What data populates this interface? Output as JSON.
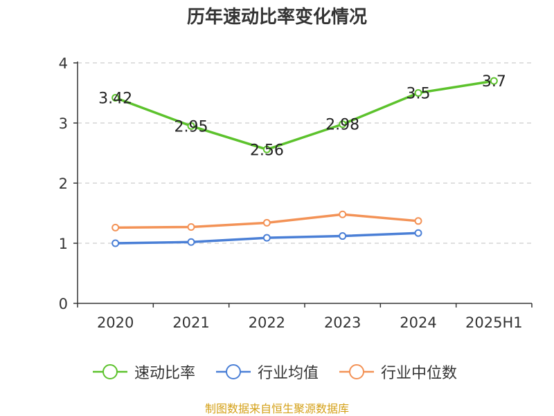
{
  "chart_data": {
    "type": "line",
    "title": "历年速动比率变化情况",
    "categories": [
      "2020",
      "2021",
      "2022",
      "2023",
      "2024",
      "2025H1"
    ],
    "ylim": [
      0,
      4
    ],
    "yticks": [
      "0",
      "1",
      "2",
      "3",
      "4"
    ],
    "grid": "horizontal dashed",
    "legend_position": "bottom",
    "series": [
      {
        "name": "速动比率",
        "color": "#5cc22c",
        "values": [
          3.42,
          2.95,
          2.56,
          2.98,
          3.5,
          3.7
        ],
        "labels": [
          "3.42",
          "2.95",
          "2.56",
          "2.98",
          "3.5",
          "3.7"
        ]
      },
      {
        "name": "行业均值",
        "color": "#4a7fd6",
        "values": [
          1.0,
          1.02,
          1.09,
          1.12,
          1.17,
          null
        ]
      },
      {
        "name": "行业中位数",
        "color": "#f39256",
        "values": [
          1.26,
          1.27,
          1.34,
          1.48,
          1.37,
          null
        ]
      }
    ]
  },
  "footer": {
    "source": "制图数据来自恒生聚源数据库"
  }
}
